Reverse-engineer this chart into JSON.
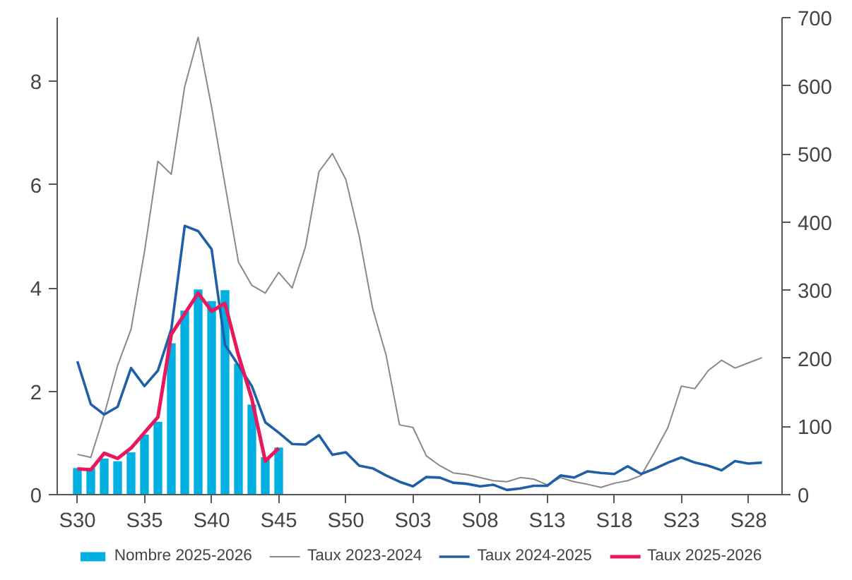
{
  "chart_data": {
    "type": "line",
    "categories": [
      "S30",
      null,
      null,
      null,
      null,
      "S35",
      null,
      null,
      null,
      null,
      "S40",
      null,
      null,
      null,
      null,
      "S45",
      null,
      null,
      null,
      null,
      "S50",
      null,
      null,
      null,
      null,
      "S03",
      null,
      null,
      null,
      null,
      "S08",
      null,
      null,
      null,
      null,
      "S13",
      null,
      null,
      null,
      null,
      "S18",
      null,
      null,
      null,
      null,
      "S23",
      null,
      null,
      null,
      null,
      "S28",
      null
    ],
    "series": [
      {
        "name": "Nombre 2025-2026",
        "type": "bar",
        "axis": "y2",
        "color": "#00b0e0",
        "values": [
          39,
          39,
          53,
          49,
          62,
          88,
          107,
          222,
          270,
          301,
          284,
          300,
          192,
          132,
          55,
          69,
          null,
          null,
          null,
          null,
          null,
          null,
          null,
          null,
          null,
          null,
          null,
          null,
          null,
          null,
          null,
          null,
          null,
          null,
          null,
          null,
          null,
          null,
          null,
          null,
          null,
          null,
          null,
          null,
          null,
          null,
          null,
          null,
          null,
          null,
          null,
          null
        ]
      },
      {
        "name": "Taux 2023-2024",
        "color": "#888888",
        "values": [
          0.78,
          0.72,
          1.55,
          2.5,
          3.2,
          4.7,
          6.45,
          6.2,
          7.9,
          8.85,
          7.5,
          6.0,
          4.5,
          4.05,
          3.9,
          4.3,
          4.0,
          4.8,
          6.25,
          6.6,
          6.1,
          5.0,
          3.6,
          2.7,
          1.35,
          1.3,
          0.75,
          0.56,
          0.42,
          0.39,
          0.33,
          0.27,
          0.25,
          0.33,
          0.3,
          0.19,
          0.33,
          0.25,
          0.2,
          0.14,
          0.22,
          0.27,
          0.37,
          0.82,
          1.3,
          2.1,
          2.05,
          2.4,
          2.6,
          2.45,
          2.55,
          2.65
        ]
      },
      {
        "name": "Taux 2024-2025",
        "color": "#1f5fa8",
        "values": [
          2.58,
          1.75,
          1.55,
          1.7,
          2.45,
          2.1,
          2.4,
          3.2,
          5.2,
          5.1,
          4.75,
          2.9,
          2.5,
          2.1,
          1.4,
          1.2,
          0.98,
          0.97,
          1.15,
          0.77,
          0.82,
          0.56,
          0.51,
          0.37,
          0.25,
          0.16,
          0.34,
          0.33,
          0.23,
          0.21,
          0.16,
          0.19,
          0.09,
          0.12,
          0.17,
          0.17,
          0.37,
          0.33,
          0.45,
          0.42,
          0.4,
          0.55,
          0.4,
          0.5,
          0.62,
          0.72,
          0.62,
          0.56,
          0.47,
          0.65,
          0.6,
          0.62
        ]
      },
      {
        "name": "Taux 2025-2026",
        "color": "#e8185f",
        "values": [
          0.5,
          0.48,
          0.8,
          0.7,
          0.9,
          1.2,
          1.5,
          3.1,
          3.5,
          3.9,
          3.55,
          3.7,
          2.7,
          1.85,
          0.65,
          0.9,
          null,
          null,
          null,
          null,
          null,
          null,
          null,
          null,
          null,
          null,
          null,
          null,
          null,
          null,
          null,
          null,
          null,
          null,
          null,
          null,
          null,
          null,
          null,
          null,
          null,
          null,
          null,
          null,
          null,
          null,
          null,
          null,
          null,
          null,
          null,
          null
        ]
      }
    ],
    "ylim": [
      0,
      9.23
    ],
    "yticks": [
      0,
      2,
      4,
      6,
      8
    ],
    "y2lim": [
      0,
      700
    ],
    "y2ticks": [
      0,
      100,
      200,
      300,
      400,
      500,
      600,
      700
    ],
    "grid": false,
    "legend": "bottom"
  }
}
